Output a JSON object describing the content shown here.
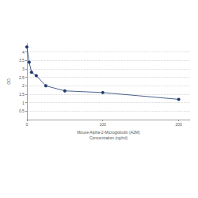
{
  "chart_data": {
    "type": "line",
    "xlabel": "Mouse Alpha-2-Microglobulin (A2M)\nConcentration (ng/ml)",
    "ylabel": "OD",
    "x": [
      0,
      3.125,
      6.25,
      12.5,
      25,
      50,
      100,
      200
    ],
    "values": [
      4.3,
      3.4,
      2.8,
      2.6,
      2.0,
      1.7,
      1.6,
      1.2
    ],
    "color": "#1f3a6e",
    "marker": "circle",
    "line_style": "solid",
    "xlim": [
      0,
      215
    ],
    "xticks": [
      0,
      100,
      200
    ],
    "ylim": [
      0,
      4.5
    ],
    "yticks": [
      0.5,
      1,
      1.5,
      2,
      2.5,
      3,
      3.5,
      4
    ],
    "grid": true
  }
}
